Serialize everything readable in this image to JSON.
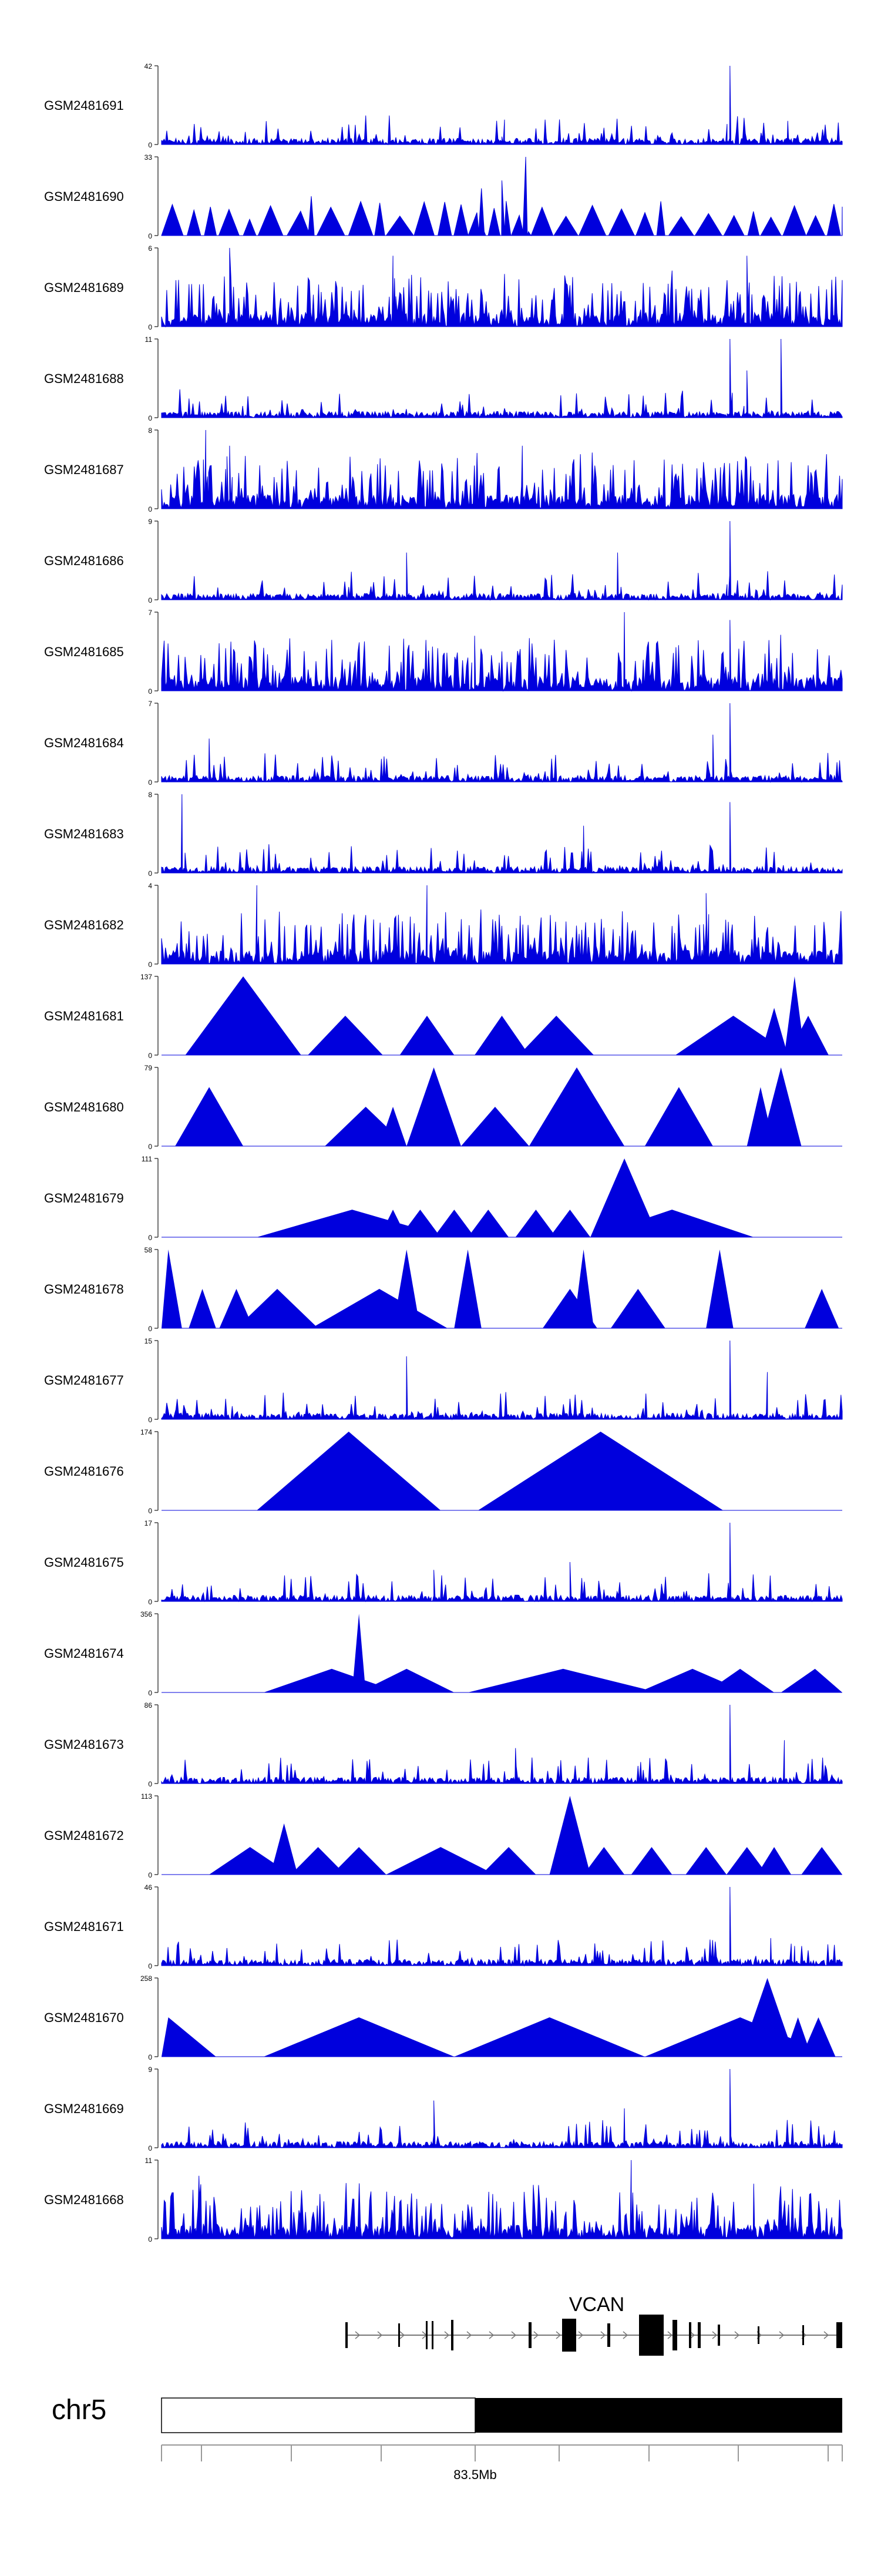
{
  "chart_data": {
    "type": "area",
    "title": "",
    "color": "#0000dd",
    "chromosome": "chr5",
    "gene": "VCAN",
    "position_label": "83.5Mb",
    "tracks": [
      {
        "name": "GSM2481691",
        "ymax": "42",
        "ymin": "0",
        "style": "dense",
        "peaks": [
          {
            "x": 0.835,
            "h": 1.0
          },
          {
            "x": 0.92,
            "h": 0.3
          },
          {
            "x": 0.5,
            "h": 0.1
          }
        ]
      },
      {
        "name": "GSM2481690",
        "ymax": "33",
        "ymin": "0",
        "style": "triangles",
        "peaks": [
          {
            "x": 0.47,
            "h": 0.6
          },
          {
            "x": 0.5,
            "h": 0.7
          },
          {
            "x": 0.535,
            "h": 1.0
          },
          {
            "x": 0.22,
            "h": 0.5
          }
        ]
      },
      {
        "name": "GSM2481689",
        "ymax": "6",
        "ymin": "0",
        "style": "spiky",
        "peaks": [
          {
            "x": 0.1,
            "h": 1.0
          },
          {
            "x": 0.34,
            "h": 0.9
          },
          {
            "x": 0.86,
            "h": 0.9
          }
        ]
      },
      {
        "name": "GSM2481688",
        "ymax": "11",
        "ymin": "0",
        "style": "dense",
        "peaks": [
          {
            "x": 0.835,
            "h": 1.0
          },
          {
            "x": 0.91,
            "h": 1.0
          },
          {
            "x": 0.86,
            "h": 0.6
          }
        ]
      },
      {
        "name": "GSM2481687",
        "ymax": "8",
        "ymin": "0",
        "style": "spiky",
        "peaks": [
          {
            "x": 0.065,
            "h": 1.0
          },
          {
            "x": 0.1,
            "h": 0.8
          },
          {
            "x": 0.53,
            "h": 0.8
          }
        ]
      },
      {
        "name": "GSM2481686",
        "ymax": "9",
        "ymin": "0",
        "style": "dense",
        "peaks": [
          {
            "x": 0.835,
            "h": 1.0
          },
          {
            "x": 0.36,
            "h": 0.6
          },
          {
            "x": 0.67,
            "h": 0.6
          }
        ]
      },
      {
        "name": "GSM2481685",
        "ymax": "7",
        "ymin": "0",
        "style": "spiky",
        "peaks": [
          {
            "x": 0.68,
            "h": 1.0
          },
          {
            "x": 0.835,
            "h": 0.9
          },
          {
            "x": 0.46,
            "h": 0.7
          }
        ]
      },
      {
        "name": "GSM2481684",
        "ymax": "7",
        "ymin": "0",
        "style": "dense",
        "peaks": [
          {
            "x": 0.835,
            "h": 1.0
          },
          {
            "x": 0.81,
            "h": 0.6
          },
          {
            "x": 0.07,
            "h": 0.55
          }
        ]
      },
      {
        "name": "GSM2481683",
        "ymax": "8",
        "ymin": "0",
        "style": "dense",
        "peaks": [
          {
            "x": 0.03,
            "h": 1.0
          },
          {
            "x": 0.835,
            "h": 0.9
          },
          {
            "x": 0.62,
            "h": 0.6
          }
        ]
      },
      {
        "name": "GSM2481682",
        "ymax": "4",
        "ymin": "0",
        "style": "spiky",
        "peaks": [
          {
            "x": 0.14,
            "h": 1.0
          },
          {
            "x": 0.39,
            "h": 1.0
          },
          {
            "x": 0.8,
            "h": 0.9
          }
        ]
      },
      {
        "name": "GSM2481681",
        "ymax": "137",
        "ymin": "0",
        "style": "peaks",
        "peaks": [
          {
            "x": 0.12,
            "h": 1.0,
            "w": 0.085
          },
          {
            "x": 0.27,
            "h": 0.5,
            "w": 0.055
          },
          {
            "x": 0.39,
            "h": 0.5,
            "w": 0.04
          },
          {
            "x": 0.5,
            "h": 0.5,
            "w": 0.04
          },
          {
            "x": 0.58,
            "h": 0.5,
            "w": 0.055
          },
          {
            "x": 0.84,
            "h": 0.5,
            "w": 0.085
          },
          {
            "x": 0.9,
            "h": 0.6,
            "w": 0.02
          },
          {
            "x": 0.93,
            "h": 1.0,
            "w": 0.015
          },
          {
            "x": 0.95,
            "h": 0.5,
            "w": 0.03
          }
        ]
      },
      {
        "name": "GSM2481680",
        "ymax": "79",
        "ymin": "0",
        "style": "peaks",
        "peaks": [
          {
            "x": 0.07,
            "h": 0.75,
            "w": 0.05
          },
          {
            "x": 0.3,
            "h": 0.5,
            "w": 0.06
          },
          {
            "x": 0.34,
            "h": 0.5,
            "w": 0.02
          },
          {
            "x": 0.4,
            "h": 1.0,
            "w": 0.04
          },
          {
            "x": 0.49,
            "h": 0.5,
            "w": 0.05
          },
          {
            "x": 0.61,
            "h": 1.0,
            "w": 0.07
          },
          {
            "x": 0.76,
            "h": 0.75,
            "w": 0.05
          },
          {
            "x": 0.88,
            "h": 0.75,
            "w": 0.02
          },
          {
            "x": 0.91,
            "h": 1.0,
            "w": 0.03
          }
        ]
      },
      {
        "name": "GSM2481679",
        "ymax": "111",
        "ymin": "0",
        "style": "peaks",
        "peaks": [
          {
            "x": 0.28,
            "h": 0.35,
            "w": 0.14
          },
          {
            "x": 0.34,
            "h": 0.35,
            "w": 0.02
          },
          {
            "x": 0.38,
            "h": 0.35,
            "w": 0.03
          },
          {
            "x": 0.43,
            "h": 0.35,
            "w": 0.03
          },
          {
            "x": 0.48,
            "h": 0.35,
            "w": 0.03
          },
          {
            "x": 0.55,
            "h": 0.35,
            "w": 0.03
          },
          {
            "x": 0.6,
            "h": 0.35,
            "w": 0.03
          },
          {
            "x": 0.68,
            "h": 1.0,
            "w": 0.05
          },
          {
            "x": 0.75,
            "h": 0.35,
            "w": 0.12
          }
        ]
      },
      {
        "name": "GSM2481678",
        "ymax": "58",
        "ymin": "0",
        "style": "peaks",
        "peaks": [
          {
            "x": 0.01,
            "h": 1.0,
            "w": 0.02
          },
          {
            "x": 0.06,
            "h": 0.5,
            "w": 0.02
          },
          {
            "x": 0.11,
            "h": 0.5,
            "w": 0.025
          },
          {
            "x": 0.17,
            "h": 0.5,
            "w": 0.06
          },
          {
            "x": 0.32,
            "h": 0.5,
            "w": 0.1
          },
          {
            "x": 0.36,
            "h": 1.0,
            "w": 0.02
          },
          {
            "x": 0.45,
            "h": 1.0,
            "w": 0.02
          },
          {
            "x": 0.6,
            "h": 0.5,
            "w": 0.04
          },
          {
            "x": 0.62,
            "h": 1.0,
            "w": 0.015
          },
          {
            "x": 0.7,
            "h": 0.5,
            "w": 0.04
          },
          {
            "x": 0.82,
            "h": 1.0,
            "w": 0.02
          },
          {
            "x": 0.97,
            "h": 0.5,
            "w": 0.025
          }
        ]
      },
      {
        "name": "GSM2481677",
        "ymax": "15",
        "ymin": "0",
        "style": "dense",
        "peaks": [
          {
            "x": 0.36,
            "h": 0.8,
            "w": 0.005
          },
          {
            "x": 0.835,
            "h": 1.0
          },
          {
            "x": 0.89,
            "h": 0.6
          }
        ]
      },
      {
        "name": "GSM2481676",
        "ymax": "174",
        "ymin": "0",
        "style": "peaks",
        "peaks": [
          {
            "x": 0.275,
            "h": 1.0,
            "w": 0.135
          },
          {
            "x": 0.645,
            "h": 1.0,
            "w": 0.18
          }
        ]
      },
      {
        "name": "GSM2481675",
        "ymax": "17",
        "ymin": "0",
        "style": "dense",
        "peaks": [
          {
            "x": 0.835,
            "h": 1.0
          },
          {
            "x": 0.6,
            "h": 0.5
          },
          {
            "x": 0.4,
            "h": 0.4
          }
        ]
      },
      {
        "name": "GSM2481674",
        "ymax": "356",
        "ymin": "0",
        "style": "peaks",
        "peaks": [
          {
            "x": 0.29,
            "h": 1.0,
            "w": 0.01
          },
          {
            "x": 0.25,
            "h": 0.3,
            "w": 0.1
          },
          {
            "x": 0.36,
            "h": 0.3,
            "w": 0.07
          },
          {
            "x": 0.59,
            "h": 0.3,
            "w": 0.14
          },
          {
            "x": 0.78,
            "h": 0.3,
            "w": 0.08
          },
          {
            "x": 0.85,
            "h": 0.3,
            "w": 0.05
          },
          {
            "x": 0.96,
            "h": 0.3,
            "w": 0.05
          }
        ]
      },
      {
        "name": "GSM2481673",
        "ymax": "86",
        "ymin": "0",
        "style": "dense",
        "peaks": [
          {
            "x": 0.835,
            "h": 1.0
          },
          {
            "x": 0.52,
            "h": 0.45
          },
          {
            "x": 0.915,
            "h": 0.55
          }
        ]
      },
      {
        "name": "GSM2481672",
        "ymax": "113",
        "ymin": "0",
        "style": "peaks",
        "peaks": [
          {
            "x": 0.13,
            "h": 0.35,
            "w": 0.06
          },
          {
            "x": 0.18,
            "h": 0.65,
            "w": 0.02
          },
          {
            "x": 0.23,
            "h": 0.35,
            "w": 0.04
          },
          {
            "x": 0.29,
            "h": 0.35,
            "w": 0.04
          },
          {
            "x": 0.41,
            "h": 0.35,
            "w": 0.08
          },
          {
            "x": 0.51,
            "h": 0.35,
            "w": 0.04
          },
          {
            "x": 0.6,
            "h": 1.0,
            "w": 0.03
          },
          {
            "x": 0.65,
            "h": 0.35,
            "w": 0.03
          },
          {
            "x": 0.72,
            "h": 0.35,
            "w": 0.03
          },
          {
            "x": 0.8,
            "h": 0.35,
            "w": 0.03
          },
          {
            "x": 0.86,
            "h": 0.35,
            "w": 0.03
          },
          {
            "x": 0.9,
            "h": 0.35,
            "w": 0.025
          },
          {
            "x": 0.97,
            "h": 0.35,
            "w": 0.03
          }
        ]
      },
      {
        "name": "GSM2481671",
        "ymax": "46",
        "ymin": "0",
        "style": "dense",
        "peaks": [
          {
            "x": 0.835,
            "h": 1.0
          },
          {
            "x": 0.895,
            "h": 0.35
          },
          {
            "x": 0.93,
            "h": 0.25
          }
        ]
      },
      {
        "name": "GSM2481670",
        "ymax": "258",
        "ymin": "0",
        "style": "peaks",
        "peaks": [
          {
            "x": 0.01,
            "h": 0.5,
            "w": 0.07
          },
          {
            "x": 0.29,
            "h": 0.5,
            "w": 0.14
          },
          {
            "x": 0.57,
            "h": 0.5,
            "w": 0.14
          },
          {
            "x": 0.85,
            "h": 0.5,
            "w": 0.14
          },
          {
            "x": 0.89,
            "h": 1.0,
            "w": 0.04
          },
          {
            "x": 0.935,
            "h": 0.5,
            "w": 0.02
          },
          {
            "x": 0.965,
            "h": 0.5,
            "w": 0.025
          }
        ]
      },
      {
        "name": "GSM2481669",
        "ymax": "9",
        "ymin": "0",
        "style": "dense",
        "peaks": [
          {
            "x": 0.835,
            "h": 1.0
          },
          {
            "x": 0.4,
            "h": 0.6
          },
          {
            "x": 0.68,
            "h": 0.5
          }
        ]
      },
      {
        "name": "GSM2481668",
        "ymax": "11",
        "ymin": "0",
        "style": "spiky",
        "peaks": [
          {
            "x": 0.055,
            "h": 0.8
          },
          {
            "x": 0.69,
            "h": 1.0
          },
          {
            "x": 0.87,
            "h": 0.7
          }
        ]
      }
    ]
  }
}
